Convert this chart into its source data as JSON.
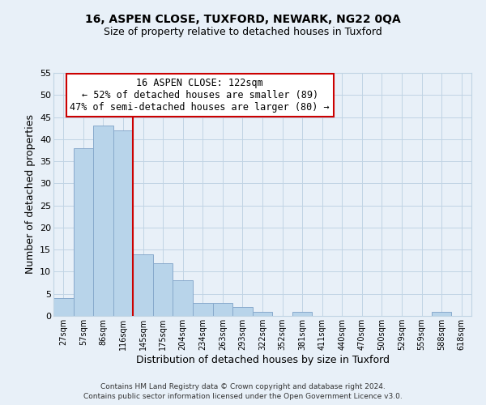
{
  "title1": "16, ASPEN CLOSE, TUXFORD, NEWARK, NG22 0QA",
  "title2": "Size of property relative to detached houses in Tuxford",
  "xlabel": "Distribution of detached houses by size in Tuxford",
  "ylabel": "Number of detached properties",
  "bar_labels": [
    "27sqm",
    "57sqm",
    "86sqm",
    "116sqm",
    "145sqm",
    "175sqm",
    "204sqm",
    "234sqm",
    "263sqm",
    "293sqm",
    "322sqm",
    "352sqm",
    "381sqm",
    "411sqm",
    "440sqm",
    "470sqm",
    "500sqm",
    "529sqm",
    "559sqm",
    "588sqm",
    "618sqm"
  ],
  "bar_values": [
    4,
    38,
    43,
    42,
    14,
    12,
    8,
    3,
    3,
    2,
    1,
    0,
    1,
    0,
    0,
    0,
    0,
    0,
    0,
    1,
    0
  ],
  "bar_color": "#b8d4ea",
  "bar_edge_color": "#88aacc",
  "vline_color": "#cc0000",
  "annotation_text": "16 ASPEN CLOSE: 122sqm\n← 52% of detached houses are smaller (89)\n47% of semi-detached houses are larger (80) →",
  "annotation_box_color": "#ffffff",
  "annotation_box_edge": "#cc0000",
  "ylim": [
    0,
    55
  ],
  "yticks": [
    0,
    5,
    10,
    15,
    20,
    25,
    30,
    35,
    40,
    45,
    50,
    55
  ],
  "grid_color": "#c0d4e4",
  "plot_bg_color": "#e8f0f8",
  "fig_bg_color": "#e8f0f8",
  "footer1": "Contains HM Land Registry data © Crown copyright and database right 2024.",
  "footer2": "Contains public sector information licensed under the Open Government Licence v3.0."
}
